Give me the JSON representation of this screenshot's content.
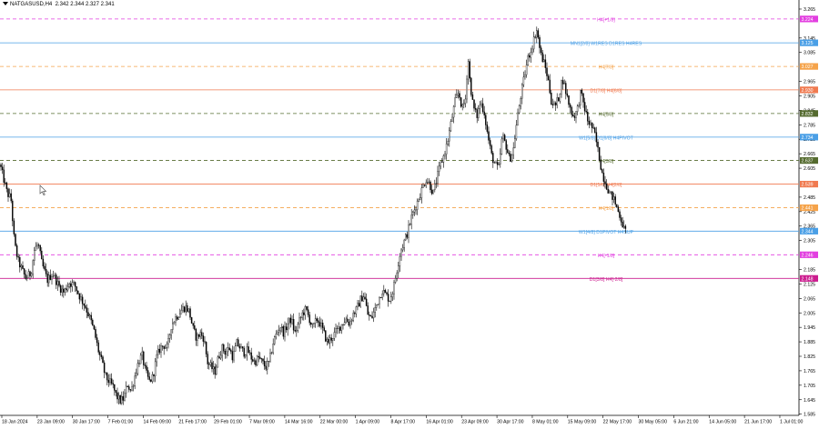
{
  "header": {
    "symbol": "NATGASUSD",
    "timeframe": "H4",
    "ohlc": "2.342 2.344 2.327 2.341"
  },
  "chart_data": {
    "type": "candlestick",
    "price_axis": {
      "ticks": [
        "3.265",
        "3.145",
        "3.085",
        "2.965",
        "2.905",
        "2.845",
        "2.785",
        "2.725",
        "2.665",
        "2.605",
        "2.485",
        "2.425",
        "2.365",
        "2.305",
        "2.185",
        "2.125",
        "2.065",
        "2.005",
        "1.945",
        "1.885",
        "1.825",
        "1.765",
        "1.705",
        "1.645",
        "1.585"
      ],
      "ylim": [
        1.58,
        3.28
      ]
    },
    "time_axis": {
      "ticks": [
        "18 Jan 2024",
        "23 Jan 09:00",
        "30 Jan 17:00",
        "7 Feb 01:00",
        "14 Feb 09:00",
        "21 Feb 17:00",
        "29 Feb 01:00",
        "7 Mar 09:00",
        "14 Mar 16:00",
        "22 Mar 00:00",
        "1 Apr 09:00",
        "8 Apr 17:00",
        "16 Apr 01:00",
        "23 Apr 09:00",
        "30 Apr 17:00",
        "8 May 01:00",
        "15 May 09:00",
        "22 May 17:00",
        "30 May 05:00",
        "6 Jun 21:00",
        "14 Jun 05:00",
        "21 Jun 17:00",
        "1 Jul 01:00"
      ]
    },
    "anchors": [
      [
        0,
        2.62
      ],
      [
        8,
        2.5
      ],
      [
        12,
        2.48
      ],
      [
        16,
        2.29
      ],
      [
        20,
        2.22
      ],
      [
        28,
        2.15
      ],
      [
        34,
        2.17
      ],
      [
        38,
        2.27
      ],
      [
        42,
        2.29
      ],
      [
        46,
        2.21
      ],
      [
        52,
        2.14
      ],
      [
        58,
        2.17
      ],
      [
        64,
        2.12
      ],
      [
        70,
        2.09
      ],
      [
        76,
        2.13
      ],
      [
        82,
        2.12
      ],
      [
        88,
        2.07
      ],
      [
        94,
        2.03
      ],
      [
        100,
        1.97
      ],
      [
        104,
        1.92
      ],
      [
        108,
        1.85
      ],
      [
        112,
        1.8
      ],
      [
        116,
        1.74
      ],
      [
        120,
        1.72
      ],
      [
        124,
        1.7
      ],
      [
        128,
        1.66
      ],
      [
        132,
        1.64
      ],
      [
        136,
        1.65
      ],
      [
        140,
        1.71
      ],
      [
        144,
        1.68
      ],
      [
        148,
        1.74
      ],
      [
        152,
        1.8
      ],
      [
        156,
        1.83
      ],
      [
        160,
        1.76
      ],
      [
        164,
        1.72
      ],
      [
        168,
        1.74
      ],
      [
        172,
        1.82
      ],
      [
        176,
        1.86
      ],
      [
        180,
        1.87
      ],
      [
        184,
        1.86
      ],
      [
        188,
        1.95
      ],
      [
        192,
        1.98
      ],
      [
        196,
        2.0
      ],
      [
        200,
        2.02
      ],
      [
        204,
        2.03
      ],
      [
        208,
        2.01
      ],
      [
        212,
        1.94
      ],
      [
        216,
        1.9
      ],
      [
        220,
        1.92
      ],
      [
        224,
        1.9
      ],
      [
        228,
        1.8
      ],
      [
        232,
        1.78
      ],
      [
        236,
        1.76
      ],
      [
        240,
        1.82
      ],
      [
        244,
        1.86
      ],
      [
        248,
        1.84
      ],
      [
        252,
        1.86
      ],
      [
        256,
        1.82
      ],
      [
        260,
        1.88
      ],
      [
        264,
        1.86
      ],
      [
        268,
        1.84
      ],
      [
        272,
        1.85
      ],
      [
        276,
        1.82
      ],
      [
        280,
        1.8
      ],
      [
        284,
        1.82
      ],
      [
        288,
        1.8
      ],
      [
        292,
        1.78
      ],
      [
        296,
        1.8
      ],
      [
        300,
        1.88
      ],
      [
        304,
        1.92
      ],
      [
        308,
        1.95
      ],
      [
        312,
        1.92
      ],
      [
        316,
        1.96
      ],
      [
        320,
        1.98
      ],
      [
        324,
        1.92
      ],
      [
        328,
        1.96
      ],
      [
        332,
        2.0
      ],
      [
        336,
        2.02
      ],
      [
        340,
        1.98
      ],
      [
        344,
        1.94
      ],
      [
        348,
        1.98
      ],
      [
        352,
        1.96
      ],
      [
        356,
        1.92
      ],
      [
        360,
        1.88
      ],
      [
        364,
        1.9
      ],
      [
        368,
        1.92
      ],
      [
        372,
        1.94
      ],
      [
        376,
        1.96
      ],
      [
        380,
        1.98
      ],
      [
        384,
        1.96
      ],
      [
        388,
        2.0
      ],
      [
        392,
        2.02
      ],
      [
        396,
        2.06
      ],
      [
        400,
        2.08
      ],
      [
        404,
        2.0
      ],
      [
        408,
        1.98
      ],
      [
        412,
        2.02
      ],
      [
        416,
        2.06
      ],
      [
        420,
        2.1
      ],
      [
        424,
        2.08
      ],
      [
        428,
        2.06
      ],
      [
        432,
        2.1
      ],
      [
        436,
        2.18
      ],
      [
        440,
        2.26
      ],
      [
        444,
        2.3
      ],
      [
        448,
        2.34
      ],
      [
        452,
        2.4
      ],
      [
        456,
        2.44
      ],
      [
        460,
        2.48
      ],
      [
        464,
        2.52
      ],
      [
        468,
        2.56
      ],
      [
        472,
        2.54
      ],
      [
        476,
        2.5
      ],
      [
        480,
        2.56
      ],
      [
        484,
        2.62
      ],
      [
        488,
        2.66
      ],
      [
        492,
        2.72
      ],
      [
        496,
        2.8
      ],
      [
        500,
        2.88
      ],
      [
        504,
        2.92
      ],
      [
        508,
        2.85
      ],
      [
        512,
        2.9
      ],
      [
        514,
        3.08
      ],
      [
        516,
        2.98
      ],
      [
        520,
        2.86
      ],
      [
        524,
        2.82
      ],
      [
        528,
        2.88
      ],
      [
        532,
        2.84
      ],
      [
        536,
        2.74
      ],
      [
        540,
        2.66
      ],
      [
        544,
        2.62
      ],
      [
        548,
        2.6
      ],
      [
        552,
        2.74
      ],
      [
        556,
        2.7
      ],
      [
        560,
        2.64
      ],
      [
        564,
        2.68
      ],
      [
        568,
        2.8
      ],
      [
        572,
        2.9
      ],
      [
        576,
        2.98
      ],
      [
        580,
        3.06
      ],
      [
        584,
        3.1
      ],
      [
        588,
        3.16
      ],
      [
        590,
        3.18
      ],
      [
        594,
        3.08
      ],
      [
        598,
        3.04
      ],
      [
        602,
        2.98
      ],
      [
        606,
        2.88
      ],
      [
        610,
        2.86
      ],
      [
        614,
        2.9
      ],
      [
        618,
        2.98
      ],
      [
        622,
        2.92
      ],
      [
        626,
        2.86
      ],
      [
        630,
        2.82
      ],
      [
        634,
        2.84
      ],
      [
        638,
        2.92
      ],
      [
        642,
        2.86
      ],
      [
        646,
        2.8
      ],
      [
        650,
        2.78
      ],
      [
        654,
        2.74
      ],
      [
        658,
        2.66
      ],
      [
        662,
        2.58
      ],
      [
        666,
        2.54
      ],
      [
        670,
        2.5
      ],
      [
        674,
        2.48
      ],
      [
        678,
        2.44
      ],
      [
        682,
        2.4
      ],
      [
        686,
        2.35
      ],
      [
        688,
        2.34
      ]
    ],
    "levels": [
      {
        "label": "H4[+1/8]",
        "value": 3.224,
        "price_label": "3.224",
        "color": "#e23fe0",
        "dashed": true,
        "badge": true
      },
      {
        "label": "MN1[2/8] W1RES D1RES H4RES",
        "value": 3.125,
        "price_label": "3.125",
        "color": "#4a9fe6",
        "dashed": false,
        "badge": true
      },
      {
        "label": "H4[7/8]",
        "value": 3.027,
        "price_label": "3.027",
        "color": "#f5a34a",
        "dashed": true,
        "badge": true
      },
      {
        "label": "D1[7/8] H4[6/8]",
        "value": 2.93,
        "price_label": "2.930",
        "color": "#f07a50",
        "dashed": false,
        "badge": true
      },
      {
        "label": "H4[5/8]",
        "value": 2.832,
        "price_label": "2.832",
        "color": "#556b2f",
        "dashed": true,
        "badge": true
      },
      {
        "label": "W1[5/8] D1[6/8] H4PIVOT",
        "value": 2.734,
        "price_label": "2.734",
        "color": "#4a9fe6",
        "dashed": false,
        "badge": true
      },
      {
        "label": "H4[3/8]",
        "value": 2.637,
        "price_label": "2.637",
        "color": "#556b2f",
        "dashed": true,
        "badge": true
      },
      {
        "label": "D1[5/8] H4[2/8]",
        "value": 2.539,
        "price_label": "2.539",
        "color": "#f07a50",
        "dashed": false,
        "badge": true
      },
      {
        "label": "H4[1/8]",
        "value": 2.441,
        "price_label": "2.441",
        "color": "#f5a34a",
        "dashed": true,
        "badge": true
      },
      {
        "label": "W1[4/8] D1PIVOT H4SUP",
        "value": 2.344,
        "price_label": "2.344",
        "color": "#4a9fe6",
        "dashed": false,
        "badge": true
      },
      {
        "label": "H4[-1/8]",
        "value": 2.246,
        "price_label": "2.246",
        "color": "#e23fe0",
        "dashed": true,
        "badge": true
      },
      {
        "label": "D1[3/8] H4[-2/8]",
        "value": 2.148,
        "price_label": "2.148",
        "color": "#cc1d8f",
        "dashed": false,
        "badge": true
      }
    ]
  }
}
